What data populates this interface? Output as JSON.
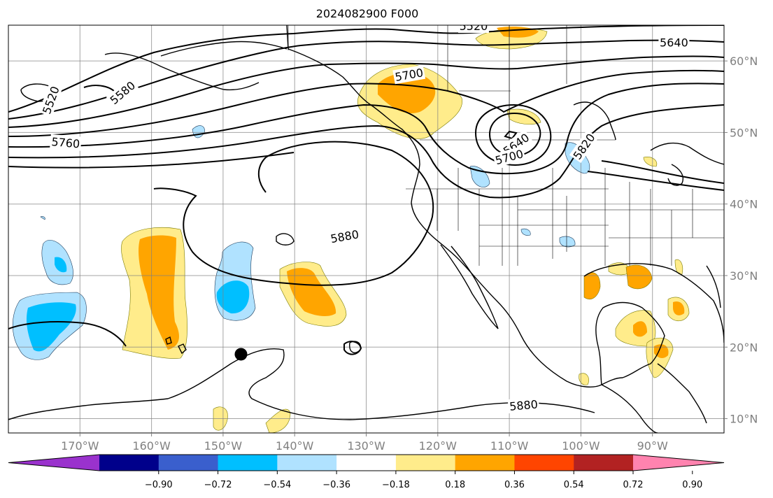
{
  "title": "2024082900 F000",
  "map": {
    "lon_range": [
      -180,
      -80
    ],
    "lat_range": [
      8,
      65
    ],
    "lon_ticks": [
      -170,
      -160,
      -150,
      -140,
      -130,
      -120,
      -110,
      -100,
      -90
    ],
    "lon_tick_labels": [
      "170°W",
      "160°W",
      "150°W",
      "140°W",
      "130°W",
      "120°W",
      "110°W",
      "100°W",
      "90°W"
    ],
    "lat_ticks": [
      10,
      20,
      30,
      40,
      50,
      60
    ],
    "lat_tick_labels": [
      "10°N",
      "20°N",
      "30°N",
      "40°N",
      "50°N",
      "60°N"
    ],
    "grid": true,
    "contour_labels": [
      {
        "text": "5520",
        "lon": -174,
        "lat": 54.5,
        "angle": -70
      },
      {
        "text": "5580",
        "lon": -164,
        "lat": 55.5,
        "angle": -40
      },
      {
        "text": "5760",
        "lon": -172,
        "lat": 48.5,
        "angle": 5
      },
      {
        "text": "5700",
        "lon": -124,
        "lat": 58.0,
        "angle": -10
      },
      {
        "text": "5520",
        "lon": -115,
        "lat": 64.8,
        "angle": 0
      },
      {
        "text": "5640",
        "lon": -87,
        "lat": 62.5,
        "angle": 0
      },
      {
        "text": "5640",
        "lon": -109,
        "lat": 48.3,
        "angle": -35
      },
      {
        "text": "5700",
        "lon": -110,
        "lat": 46.5,
        "angle": -15
      },
      {
        "text": "5820",
        "lon": -99.5,
        "lat": 48.0,
        "angle": -55
      },
      {
        "text": "5880",
        "lon": -133,
        "lat": 35.4,
        "angle": -10
      },
      {
        "text": "5880",
        "lon": -108,
        "lat": 11.8,
        "angle": -5
      }
    ],
    "marker": {
      "lon": -147.5,
      "lat": 19.0,
      "name": "point-marker"
    }
  },
  "colorbar": {
    "colors": [
      "#9a32cd",
      "#00008b",
      "#3a5fcd",
      "#00bfff",
      "#b0e2ff",
      "#ffffff",
      "#ffec8b",
      "#ffa500",
      "#ff4500",
      "#b22222",
      "#ff83af"
    ],
    "ticks": [
      -0.9,
      -0.72,
      -0.54,
      -0.36,
      -0.18,
      0.18,
      0.36,
      0.54,
      0.72,
      0.9
    ],
    "tick_labels": [
      "−0.90",
      "−0.72",
      "−0.54",
      "−0.36",
      "−0.18",
      "0.18",
      "0.36",
      "0.54",
      "0.72",
      "0.90"
    ],
    "extend": "both"
  }
}
